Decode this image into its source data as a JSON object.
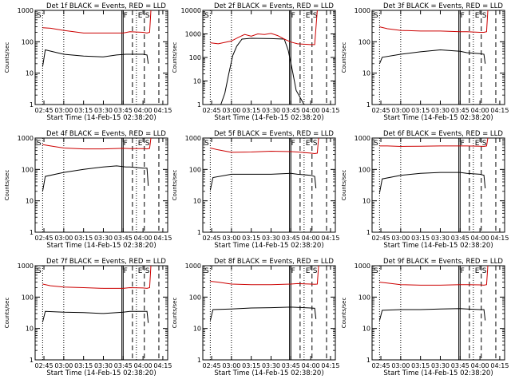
{
  "chart_data": [
    {
      "type": "line",
      "title": "Det 1f BLACK = Events, RED = LLD",
      "xlabel": "Start Time (14-Feb-15 02:38:20)",
      "ylabel": "Counts/sec",
      "y_scale": "log",
      "ylim": [
        1,
        1000
      ],
      "yticks": [
        "1",
        "10",
        "100",
        "1000"
      ],
      "xticks": [
        "02:45",
        "03:00",
        "03:15",
        "03:30",
        "03:45",
        "04:00",
        "04:15"
      ],
      "markers": [
        "S",
        "F",
        "E",
        "S"
      ],
      "series": [
        {
          "color": "#000000",
          "x": [
            "02:44",
            "02:46",
            "03:00",
            "03:15",
            "03:30",
            "03:40",
            "03:47",
            "03:50",
            "04:00",
            "04:03",
            "04:04"
          ],
          "y": [
            16,
            55,
            40,
            35,
            33,
            38,
            40,
            40,
            40,
            38,
            20
          ]
        },
        {
          "color": "#cc0000",
          "x": [
            "02:44",
            "02:50",
            "03:00",
            "03:15",
            "03:30",
            "03:45",
            "03:50",
            "04:00",
            "04:03",
            "04:05",
            "04:06"
          ],
          "y": [
            280,
            270,
            230,
            190,
            190,
            190,
            210,
            200,
            190,
            200,
            1000
          ]
        }
      ]
    },
    {
      "type": "line",
      "title": "Det 2f BLACK = Events, RED = LLD",
      "xlabel": "Start Time (14-Feb-15 02:38:20)",
      "ylabel": "Counts/sec",
      "y_scale": "log",
      "ylim": [
        1,
        10000
      ],
      "yticks": [
        "1",
        "10",
        "100",
        "1000",
        "10000"
      ],
      "xticks": [
        "02:45",
        "03:00",
        "03:15",
        "03:30",
        "03:45",
        "04:00",
        "04:15"
      ],
      "markers": [
        "S",
        "F",
        "E",
        "S"
      ],
      "series": [
        {
          "color": "#000000",
          "x": [
            "02:52",
            "02:55",
            "02:58",
            "03:01",
            "03:04",
            "03:08",
            "03:15",
            "03:30",
            "03:40",
            "03:43",
            "03:46",
            "03:49",
            "03:52",
            "03:55"
          ],
          "y": [
            1,
            3,
            20,
            120,
            300,
            600,
            650,
            630,
            600,
            200,
            30,
            4,
            2,
            1
          ]
        },
        {
          "color": "#cc0000",
          "x": [
            "02:44",
            "02:50",
            "03:00",
            "03:05",
            "03:10",
            "03:15",
            "03:20",
            "03:25",
            "03:30",
            "03:35",
            "03:40",
            "03:45",
            "03:50",
            "04:00",
            "04:03",
            "04:05"
          ],
          "y": [
            420,
            380,
            500,
            700,
            950,
            800,
            1000,
            950,
            1050,
            850,
            600,
            450,
            380,
            350,
            350,
            10000
          ]
        }
      ]
    },
    {
      "type": "line",
      "title": "Det 3f BLACK = Events, RED = LLD",
      "xlabel": "Start Time (14-Feb-15 02:38:20)",
      "ylabel": "Counts/sec",
      "y_scale": "log",
      "ylim": [
        1,
        1000
      ],
      "yticks": [
        "1",
        "10",
        "100",
        "1000"
      ],
      "xticks": [
        "02:45",
        "03:00",
        "03:15",
        "03:30",
        "03:45",
        "04:00",
        "04:15"
      ],
      "markers": [
        "S",
        "F",
        "E",
        "S"
      ],
      "series": [
        {
          "color": "#000000",
          "x": [
            "02:44",
            "02:46",
            "03:00",
            "03:15",
            "03:30",
            "03:45",
            "03:50",
            "04:00",
            "04:03",
            "04:04"
          ],
          "y": [
            20,
            32,
            40,
            48,
            55,
            50,
            45,
            42,
            40,
            20
          ]
        },
        {
          "color": "#cc0000",
          "x": [
            "02:44",
            "02:50",
            "03:00",
            "03:15",
            "03:30",
            "03:45",
            "03:50",
            "04:00",
            "04:03",
            "04:05",
            "04:06"
          ],
          "y": [
            300,
            260,
            230,
            220,
            220,
            210,
            210,
            200,
            200,
            210,
            1000
          ]
        }
      ]
    },
    {
      "type": "line",
      "title": "Det 4f BLACK = Events, RED = LLD",
      "xlabel": "Start Time (14-Feb-15 02:38:20)",
      "ylabel": "Counts/sec",
      "y_scale": "log",
      "ylim": [
        1,
        1000
      ],
      "yticks": [
        "1",
        "10",
        "100",
        "1000"
      ],
      "xticks": [
        "02:45",
        "03:00",
        "03:15",
        "03:30",
        "03:45",
        "04:00",
        "04:15"
      ],
      "markers": [
        "S",
        "F",
        "E",
        "S"
      ],
      "series": [
        {
          "color": "#000000",
          "x": [
            "02:44",
            "02:46",
            "03:00",
            "03:15",
            "03:30",
            "03:40",
            "03:47",
            "03:50",
            "04:00",
            "04:03",
            "04:04"
          ],
          "y": [
            20,
            60,
            80,
            100,
            120,
            130,
            120,
            120,
            110,
            110,
            30
          ]
        },
        {
          "color": "#cc0000",
          "x": [
            "02:44",
            "02:50",
            "03:00",
            "03:15",
            "03:30",
            "03:45",
            "03:50",
            "04:00",
            "04:03",
            "04:05",
            "04:06"
          ],
          "y": [
            620,
            560,
            480,
            450,
            450,
            470,
            460,
            460,
            450,
            470,
            1000
          ]
        }
      ]
    },
    {
      "type": "line",
      "title": "Det 5f BLACK = Events, RED = LLD",
      "xlabel": "Start Time (14-Feb-15 02:38:20)",
      "ylabel": "Counts/sec",
      "y_scale": "log",
      "ylim": [
        1,
        1000
      ],
      "yticks": [
        "1",
        "10",
        "100",
        "1000"
      ],
      "xticks": [
        "02:45",
        "03:00",
        "03:15",
        "03:30",
        "03:45",
        "04:00",
        "04:15"
      ],
      "markers": [
        "S",
        "F",
        "E",
        "S"
      ],
      "series": [
        {
          "color": "#000000",
          "x": [
            "02:44",
            "02:46",
            "03:00",
            "03:15",
            "03:30",
            "03:45",
            "03:50",
            "04:00",
            "04:03",
            "04:04"
          ],
          "y": [
            22,
            55,
            70,
            70,
            70,
            75,
            70,
            65,
            60,
            25
          ]
        },
        {
          "color": "#cc0000",
          "x": [
            "02:44",
            "02:50",
            "03:00",
            "03:15",
            "03:30",
            "03:45",
            "03:50",
            "04:00",
            "04:03",
            "04:05",
            "04:06"
          ],
          "y": [
            480,
            420,
            350,
            360,
            380,
            370,
            360,
            330,
            320,
            330,
            1000
          ]
        }
      ]
    },
    {
      "type": "line",
      "title": "Det 6f BLACK = Events, RED = LLD",
      "xlabel": "Start Time (14-Feb-15 02:38:20)",
      "ylabel": "Counts/sec",
      "y_scale": "log",
      "ylim": [
        1,
        1000
      ],
      "yticks": [
        "1",
        "10",
        "100",
        "1000"
      ],
      "xticks": [
        "02:45",
        "03:00",
        "03:15",
        "03:30",
        "03:45",
        "04:00",
        "04:15"
      ],
      "markers": [
        "S",
        "F",
        "E",
        "S"
      ],
      "series": [
        {
          "color": "#000000",
          "x": [
            "02:44",
            "02:46",
            "03:00",
            "03:15",
            "03:30",
            "03:45",
            "03:50",
            "04:00",
            "04:03",
            "04:04"
          ],
          "y": [
            18,
            50,
            65,
            75,
            80,
            80,
            75,
            70,
            65,
            25
          ]
        },
        {
          "color": "#cc0000",
          "x": [
            "02:44",
            "02:50",
            "03:00",
            "03:15",
            "03:30",
            "03:45",
            "03:50",
            "04:00",
            "04:03",
            "04:05",
            "04:06"
          ],
          "y": [
            560,
            560,
            540,
            550,
            560,
            560,
            560,
            550,
            540,
            560,
            1000
          ]
        }
      ]
    },
    {
      "type": "line",
      "title": "Det 7f BLACK = Events, RED = LLD",
      "xlabel": "Start Time (14-Feb-15 02:38:20)",
      "ylabel": "Counts/sec",
      "y_scale": "log",
      "ylim": [
        1,
        1000
      ],
      "yticks": [
        "1",
        "10",
        "100",
        "1000"
      ],
      "xticks": [
        "02:45",
        "03:00",
        "03:15",
        "03:30",
        "03:45",
        "04:00",
        "04:15"
      ],
      "markers": [
        "S",
        "F",
        "E",
        "S"
      ],
      "series": [
        {
          "color": "#000000",
          "x": [
            "02:44",
            "02:46",
            "03:00",
            "03:15",
            "03:30",
            "03:45",
            "03:50",
            "04:00",
            "04:03",
            "04:04"
          ],
          "y": [
            16,
            35,
            33,
            32,
            30,
            33,
            35,
            35,
            35,
            15
          ]
        },
        {
          "color": "#cc0000",
          "x": [
            "02:44",
            "02:50",
            "03:00",
            "03:15",
            "03:30",
            "03:45",
            "03:50",
            "04:00",
            "04:03",
            "04:05",
            "04:06"
          ],
          "y": [
            260,
            230,
            210,
            200,
            190,
            190,
            200,
            195,
            190,
            200,
            1000
          ]
        }
      ]
    },
    {
      "type": "line",
      "title": "Det 8f BLACK = Events, RED = LLD",
      "xlabel": "Start Time (14-Feb-15 02:38:20)",
      "ylabel": "Counts/sec",
      "y_scale": "log",
      "ylim": [
        1,
        1000
      ],
      "yticks": [
        "1",
        "10",
        "100",
        "1000"
      ],
      "xticks": [
        "02:45",
        "03:00",
        "03:15",
        "03:30",
        "03:45",
        "04:00",
        "04:15"
      ],
      "markers": [
        "S",
        "F",
        "E",
        "S"
      ],
      "series": [
        {
          "color": "#000000",
          "x": [
            "02:44",
            "02:46",
            "03:00",
            "03:15",
            "03:30",
            "03:45",
            "03:50",
            "04:00",
            "04:03",
            "04:04"
          ],
          "y": [
            18,
            40,
            42,
            45,
            46,
            48,
            47,
            45,
            44,
            20
          ]
        },
        {
          "color": "#cc0000",
          "x": [
            "02:44",
            "02:50",
            "03:00",
            "03:15",
            "03:30",
            "03:45",
            "03:50",
            "04:00",
            "04:03",
            "04:05",
            "04:06"
          ],
          "y": [
            320,
            300,
            260,
            250,
            250,
            260,
            270,
            260,
            255,
            260,
            1000
          ]
        }
      ]
    },
    {
      "type": "line",
      "title": "Det 9f BLACK = Events, RED = LLD",
      "xlabel": "Start Time (14-Feb-15 02:38:20)",
      "ylabel": "Counts/sec",
      "y_scale": "log",
      "ylim": [
        1,
        1000
      ],
      "yticks": [
        "1",
        "10",
        "100",
        "1000"
      ],
      "xticks": [
        "02:45",
        "03:00",
        "03:15",
        "03:30",
        "03:45",
        "04:00",
        "04:15"
      ],
      "markers": [
        "S",
        "F",
        "E",
        "S"
      ],
      "series": [
        {
          "color": "#000000",
          "x": [
            "02:44",
            "02:46",
            "03:00",
            "03:15",
            "03:30",
            "03:45",
            "03:50",
            "04:00",
            "04:03",
            "04:04"
          ],
          "y": [
            18,
            38,
            40,
            40,
            42,
            43,
            42,
            40,
            40,
            18
          ]
        },
        {
          "color": "#cc0000",
          "x": [
            "02:44",
            "02:50",
            "03:00",
            "03:15",
            "03:30",
            "03:45",
            "03:50",
            "04:00",
            "04:03",
            "04:05",
            "04:06"
          ],
          "y": [
            300,
            280,
            250,
            240,
            240,
            250,
            250,
            245,
            240,
            250,
            1000
          ]
        }
      ]
    }
  ]
}
